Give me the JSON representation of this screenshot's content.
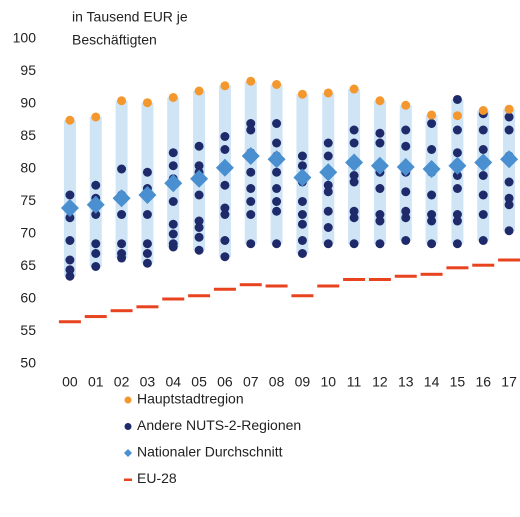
{
  "chart_data": {
    "type": "dot",
    "y_label": [
      "in Tausend EUR je",
      "Beschäftigten"
    ],
    "categories": [
      "00",
      "01",
      "02",
      "03",
      "04",
      "05",
      "06",
      "07",
      "08",
      "09",
      "10",
      "11",
      "12",
      "13",
      "14",
      "15",
      "16",
      "17"
    ],
    "ylim": [
      50,
      100
    ],
    "yticks": [
      50,
      55,
      60,
      65,
      70,
      75,
      80,
      85,
      90,
      95,
      100
    ],
    "range_color": "#cfe4f5",
    "series": [
      {
        "name": "Hauptstadtregion",
        "color": "#f4982e",
        "marker": "circle",
        "values": [
          87.5,
          88,
          90.5,
          90.2,
          91,
          92,
          92.8,
          93.5,
          93,
          91.5,
          91.7,
          92.3,
          90.5,
          89.8,
          88.3,
          88.2,
          89,
          89.2
        ]
      },
      {
        "name": "Andere NUTS-2-Regionen",
        "color": "#1f2a6b",
        "marker": "circle",
        "values": [
          [
            76,
            72.5,
            69,
            66,
            64.5,
            63.5
          ],
          [
            77.5,
            75.5,
            73,
            68.5,
            67,
            65
          ],
          [
            80,
            76,
            73,
            68.5,
            67,
            66.3
          ],
          [
            79.5,
            77,
            73,
            68.5,
            67,
            65.5
          ],
          [
            82.5,
            80.5,
            78.5,
            75,
            71.5,
            70,
            68.5,
            68
          ],
          [
            83.5,
            80.5,
            79.5,
            76,
            72,
            71,
            69.5,
            67.5
          ],
          [
            85,
            83,
            80.5,
            77.5,
            74,
            73,
            69,
            66.5
          ],
          [
            87,
            86,
            82.5,
            79.5,
            77,
            75,
            73,
            68.5
          ],
          [
            87,
            84,
            82,
            79.5,
            77,
            75,
            73.5,
            68.5
          ],
          [
            82,
            80.5,
            78,
            75,
            73,
            71.5,
            69,
            67
          ],
          [
            84,
            82,
            77.5,
            76.5,
            73.5,
            71,
            68.5
          ],
          [
            86,
            84,
            79,
            78,
            73.5,
            72.5,
            68.5
          ],
          [
            85.5,
            84,
            79.5,
            77,
            73,
            72,
            68.5
          ],
          [
            86,
            83.5,
            79.5,
            76.5,
            73.5,
            72.5,
            69
          ],
          [
            87,
            83,
            79.5,
            76,
            73,
            72,
            68.5
          ],
          [
            90.7,
            86,
            82.5,
            79,
            77,
            73,
            72,
            68.5
          ],
          [
            88.5,
            86,
            83,
            79,
            76,
            73,
            69
          ],
          [
            88,
            86,
            82,
            78,
            75.5,
            74.5,
            70.5
          ]
        ]
      },
      {
        "name": "Nationaler Durchschnitt",
        "color": "#4a90d0",
        "marker": "diamond",
        "values": [
          74,
          74.5,
          75.5,
          76,
          77.8,
          78.5,
          80.2,
          82,
          81.5,
          78.7,
          79.5,
          81,
          80.5,
          80.3,
          80,
          80.5,
          81,
          81.5
        ]
      },
      {
        "name": "EU-28",
        "color": "#e8431f",
        "marker": "dash",
        "values": [
          56.5,
          57.3,
          58.2,
          58.8,
          60,
          60.5,
          61.5,
          62.2,
          62,
          60.5,
          62,
          63,
          63,
          63.5,
          63.8,
          64.8,
          65.2,
          66
        ]
      }
    ]
  }
}
